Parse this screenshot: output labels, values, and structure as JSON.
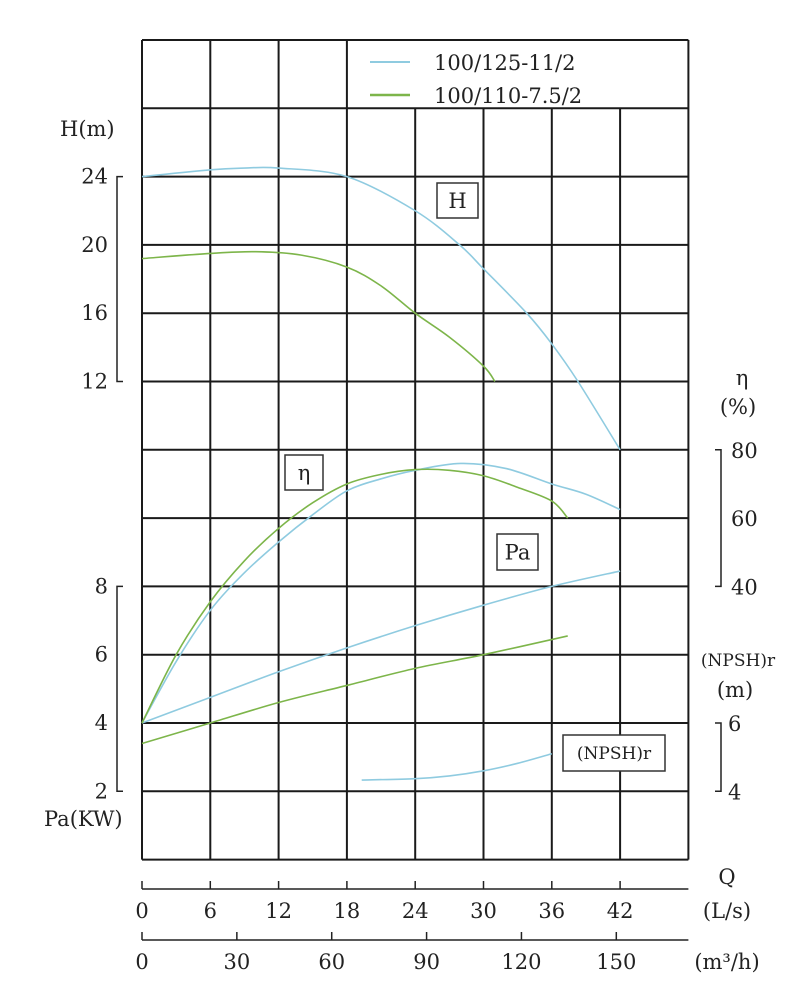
{
  "chart_data": {
    "type": "line",
    "title": "",
    "colors": {
      "series1": "#8fcbe0",
      "series2": "#7db54a"
    },
    "legend": {
      "placement": "top-right",
      "entries": [
        "100/125-11/2",
        "100/110-7.5/2"
      ]
    },
    "x_axes": {
      "flow_ls": {
        "label": "(L/s)",
        "title": "Q",
        "ticks": [
          "0",
          "6",
          "12",
          "18",
          "24",
          "30",
          "36",
          "42"
        ],
        "range": [
          0,
          48
        ]
      },
      "flow_m3h": {
        "label": "(m³/h)",
        "ticks": [
          "0",
          "30",
          "60",
          "90",
          "120",
          "150"
        ]
      }
    },
    "y_axes": {
      "head": {
        "label": "H(m)",
        "ticks": [
          "24",
          "20",
          "16",
          "12"
        ],
        "range": [
          12,
          24
        ]
      },
      "efficiency": {
        "label_symbol": "η",
        "label_unit": "(%)",
        "ticks": [
          "80",
          "60",
          "40"
        ],
        "range": [
          40,
          80
        ]
      },
      "power": {
        "label": "Pa(KW)",
        "ticks": [
          "8",
          "6",
          "4",
          "2"
        ],
        "range": [
          2,
          8
        ]
      },
      "npsh": {
        "label": "(NPSH)r",
        "label_unit": "(m)",
        "ticks": [
          "6",
          "4"
        ],
        "range": [
          4,
          6
        ]
      }
    },
    "curve_labels": {
      "head": "H",
      "efficiency": "η",
      "power": "Pa",
      "npsh": "(NPSH)r"
    },
    "grid": true,
    "series": [
      {
        "name": "100/125-11/2",
        "head": [
          [
            0,
            24
          ],
          [
            6,
            24.4
          ],
          [
            9,
            24.5
          ],
          [
            12,
            24.5
          ],
          [
            18,
            24
          ],
          [
            24,
            22
          ],
          [
            27.9,
            20
          ],
          [
            30,
            18.6
          ],
          [
            33.8,
            16
          ],
          [
            36,
            14.2
          ],
          [
            38.3,
            12
          ],
          [
            42,
            8
          ]
        ],
        "efficiency": [
          [
            0,
            0
          ],
          [
            3,
            18
          ],
          [
            6,
            33
          ],
          [
            9,
            44
          ],
          [
            12,
            53
          ],
          [
            15,
            61
          ],
          [
            18,
            68
          ],
          [
            21,
            71.5
          ],
          [
            24,
            74
          ],
          [
            28,
            76
          ],
          [
            32,
            74.5
          ],
          [
            36,
            70
          ],
          [
            39,
            67
          ],
          [
            42,
            62.5
          ]
        ],
        "power": [
          [
            0,
            4
          ],
          [
            6,
            4.75
          ],
          [
            12,
            5.5
          ],
          [
            18,
            6.2
          ],
          [
            24,
            6.85
          ],
          [
            30,
            7.45
          ],
          [
            36,
            8
          ],
          [
            42,
            8.45
          ]
        ],
        "npsh": [
          [
            19.3,
            4.33
          ],
          [
            24,
            4.37
          ],
          [
            27,
            4.45
          ],
          [
            30,
            4.6
          ],
          [
            33,
            4.82
          ],
          [
            36,
            5.1
          ]
        ]
      },
      {
        "name": "100/110-7.5/2",
        "head": [
          [
            0,
            19.2
          ],
          [
            6,
            19.5
          ],
          [
            10,
            19.6
          ],
          [
            14,
            19.4
          ],
          [
            18,
            18.7
          ],
          [
            21,
            17.6
          ],
          [
            24,
            16
          ],
          [
            27,
            14.6
          ],
          [
            30,
            12.9
          ],
          [
            31,
            12
          ]
        ],
        "efficiency": [
          [
            0,
            0
          ],
          [
            3,
            20
          ],
          [
            6,
            35.5
          ],
          [
            9,
            47.5
          ],
          [
            12,
            57
          ],
          [
            15,
            64.5
          ],
          [
            18,
            70
          ],
          [
            21,
            72.8
          ],
          [
            24,
            74.2
          ],
          [
            27,
            74
          ],
          [
            30,
            72.4
          ],
          [
            33,
            69
          ],
          [
            36,
            65
          ],
          [
            37.4,
            60
          ]
        ],
        "power": [
          [
            0,
            3.4
          ],
          [
            6,
            4.0
          ],
          [
            12,
            4.6
          ],
          [
            18,
            5.1
          ],
          [
            24,
            5.6
          ],
          [
            30,
            6.0
          ],
          [
            37.4,
            6.55
          ]
        ]
      }
    ]
  }
}
